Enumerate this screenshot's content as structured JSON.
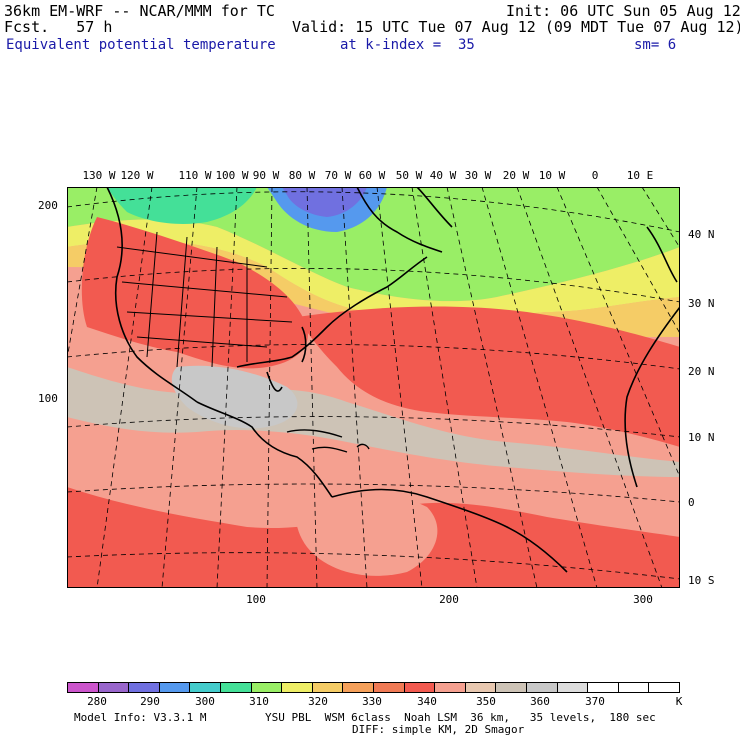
{
  "header": {
    "model_line": "36km EM-WRF -- NCAR/MMM for TC",
    "fcst_line": "Fcst.   57 h",
    "init_line": "Init: 06 UTC Sun 05 Aug 12",
    "valid_line": "Valid: 15 UTC Tue 07 Aug 12 (09 MDT Tue 07 Aug 12)",
    "field_name": "Equivalent potential temperature",
    "level": "at k-index =  35",
    "smoothing": "sm= 6"
  },
  "map": {
    "lon_labels": [
      "130 W",
      "120 W",
      "110 W",
      "100 W",
      "90 W",
      "80 W",
      "70 W",
      "60 W",
      "50 W",
      "40 W",
      "30 W",
      "20 W",
      "10 W",
      "0",
      "10 E"
    ],
    "lat_labels": [
      "40 N",
      "30 N",
      "20 N",
      "10 N",
      "0",
      "10 S"
    ],
    "grid_y_labels": [
      "200",
      "100"
    ],
    "grid_x_labels": [
      "100",
      "200",
      "300"
    ]
  },
  "legend": {
    "labels": [
      "280",
      "290",
      "300",
      "310",
      "320",
      "330",
      "340",
      "350",
      "360",
      "370",
      "K"
    ],
    "colors": [
      "#cc55cc",
      "#9966cc",
      "#7070e0",
      "#5599ee",
      "#44cccc",
      "#44e098",
      "#99ee66",
      "#eeee66",
      "#f5cc66",
      "#f5a05a",
      "#f07a55",
      "#f25a50",
      "#f5a090",
      "#e8c8b0",
      "#cdc3b6",
      "#c8c8c8",
      "#dddddd",
      "#ffffff",
      "#ffffff",
      "#ffffff"
    ]
  },
  "footer": {
    "model_info": "Model Info: V3.3.1 M",
    "physics": "YSU PBL  WSM 6class  Noah LSM  36 km,   35 levels,  180 sec",
    "diffusion": "DIFF: simple KM, 2D Smagor"
  }
}
